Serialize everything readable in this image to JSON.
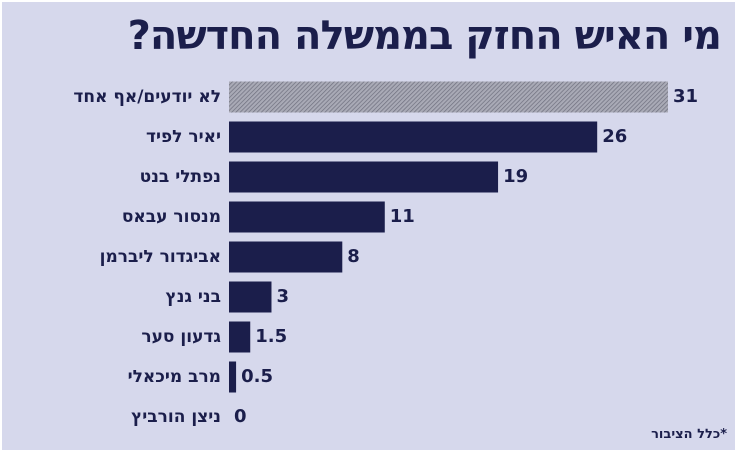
{
  "chart_data": {
    "type": "bar",
    "orientation": "horizontal",
    "title": "מי האיש החזק בממשלה החדשה?",
    "categories": [
      "לא יודעים/אף אחד",
      "יאיר לפיד",
      "נפתלי בנט",
      "מנסור עבאס",
      "אביגדור ליברמן",
      "בני גנץ",
      "גדעון סער",
      "מרב מיכאלי",
      "ניצן הורביץ"
    ],
    "values": [
      31,
      26,
      19,
      11,
      8,
      3,
      1.5,
      0.5,
      0
    ],
    "value_labels": [
      "31",
      "26",
      "19",
      "11",
      "8",
      "3",
      "1.5",
      "0.5",
      "0"
    ],
    "xlim": [
      0,
      31
    ],
    "grid": false,
    "colors": {
      "bar": "#1b1e4b",
      "first_bar_pattern": "#8a8b99",
      "background": "#d6d8ec"
    },
    "note": "*כלל הציבור"
  }
}
